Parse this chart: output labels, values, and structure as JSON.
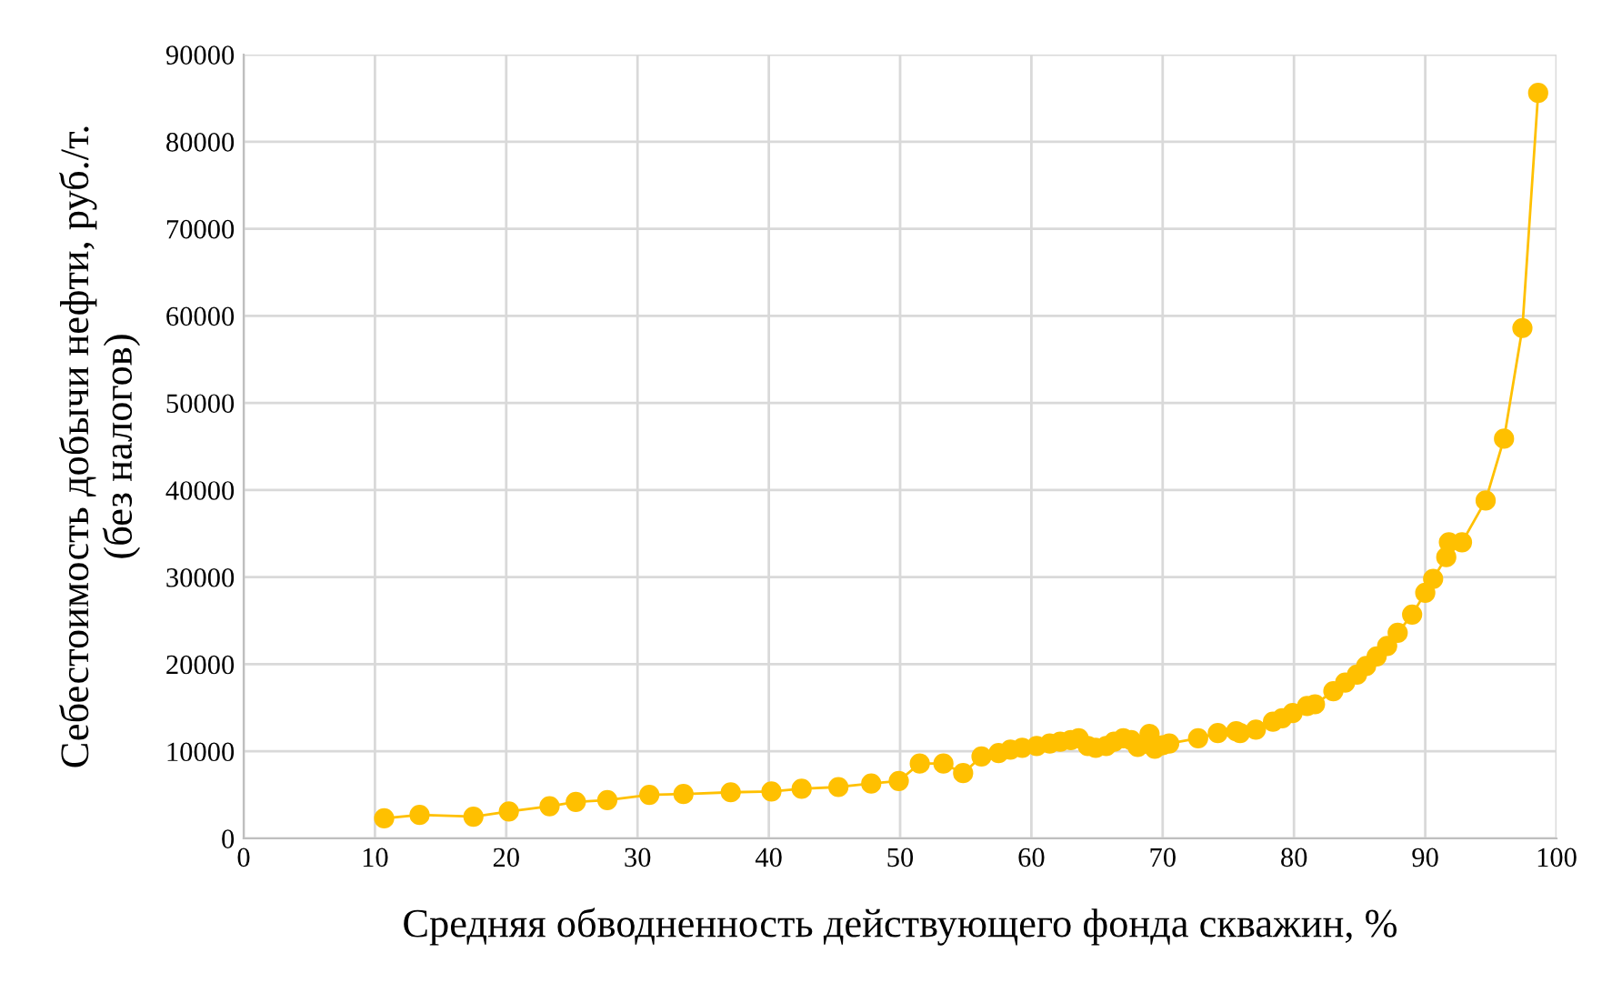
{
  "chart_data": {
    "type": "line",
    "xlabel": "Средняя обводненность действующего фонда скважин, %",
    "ylabel": "Себестоимость добычи нефти, руб./т.\n(без налогов)",
    "xlim": [
      0,
      100
    ],
    "xticks": [
      0,
      10,
      20,
      30,
      40,
      50,
      60,
      70,
      80,
      90,
      100
    ],
    "ylim": [
      0,
      90000
    ],
    "yticks": [
      0,
      10000,
      20000,
      30000,
      40000,
      50000,
      60000,
      70000,
      80000,
      90000
    ],
    "grid": true,
    "marker": "circle",
    "line_style": "solid",
    "series": [
      {
        "color": "#ffc000",
        "x": [
          10.7,
          13.4,
          17.5,
          20.2,
          23.3,
          25.3,
          27.7,
          30.9,
          33.5,
          37.1,
          40.2,
          42.5,
          45.3,
          47.8,
          49.9,
          51.5,
          53.3,
          54.8,
          56.2,
          57.5,
          58.4,
          59.3,
          60.4,
          61.4,
          62.2,
          63.0,
          63.6,
          64.3,
          64.9,
          65.7,
          66.3,
          67.0,
          67.6,
          68.1,
          68.7,
          69.0,
          69.4,
          70.0,
          70.5,
          72.7,
          74.2,
          75.6,
          75.9,
          77.1,
          78.4,
          79.1,
          79.9,
          81.0,
          81.6,
          83.0,
          83.9,
          84.8,
          85.5,
          86.3,
          87.1,
          87.9,
          89.0,
          90.0,
          90.6,
          91.6,
          91.8,
          92.8,
          94.6,
          96.0,
          97.4,
          98.6
        ],
        "values": [
          2300,
          2700,
          2500,
          3100,
          3700,
          4200,
          4400,
          5000,
          5100,
          5300,
          5400,
          5700,
          5900,
          6300,
          6600,
          8600,
          8600,
          7500,
          9400,
          9800,
          10200,
          10400,
          10600,
          10900,
          11100,
          11300,
          11500,
          10600,
          10400,
          10600,
          11100,
          11500,
          11300,
          10500,
          10900,
          12000,
          10300,
          10700,
          10900,
          11500,
          12100,
          12300,
          12100,
          12500,
          13400,
          13800,
          14400,
          15200,
          15400,
          16900,
          17900,
          18800,
          19800,
          20900,
          22100,
          23600,
          25700,
          28200,
          29800,
          32300,
          34000,
          34000,
          38800,
          45900,
          58600,
          85600
        ]
      }
    ]
  }
}
